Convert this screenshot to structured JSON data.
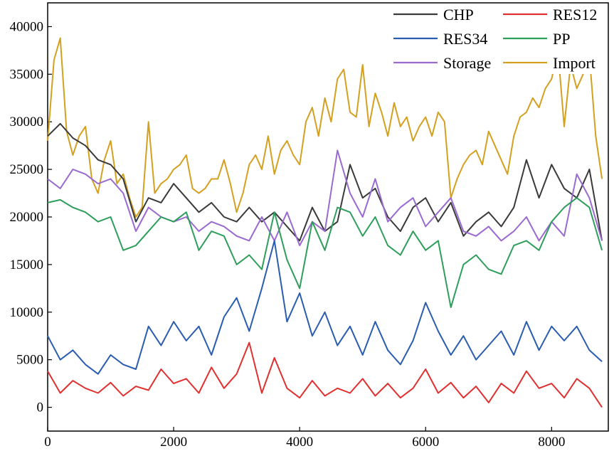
{
  "chart_data": {
    "type": "line",
    "title": "",
    "xlabel": "",
    "ylabel": "",
    "xlim": [
      0,
      8900
    ],
    "ylim": [
      -2500,
      42500
    ],
    "xticks": [
      0,
      2000,
      4000,
      6000,
      8000
    ],
    "yticks": [
      0,
      5000,
      10000,
      15000,
      20000,
      25000,
      30000,
      35000,
      40000
    ],
    "grid": false,
    "legend_position": "top-right",
    "legend": [
      "CHP",
      "RES12",
      "RES34",
      "PP",
      "Storage",
      "Import"
    ],
    "series": [
      {
        "name": "CHP",
        "color": "#3a3a3a",
        "x": [
          0,
          200,
          400,
          600,
          800,
          1000,
          1200,
          1400,
          1600,
          1800,
          2000,
          2200,
          2400,
          2600,
          2800,
          3000,
          3200,
          3400,
          3600,
          3800,
          4000,
          4200,
          4400,
          4600,
          4800,
          5000,
          5200,
          5400,
          5600,
          5800,
          6000,
          6200,
          6400,
          6600,
          6800,
          7000,
          7200,
          7400,
          7600,
          7800,
          8000,
          8200,
          8400,
          8600,
          8800
        ],
        "values": [
          28500,
          29800,
          28300,
          27500,
          26000,
          25500,
          24000,
          19500,
          22000,
          21500,
          23500,
          22000,
          20500,
          21500,
          20000,
          19500,
          21000,
          19500,
          20500,
          19000,
          17500,
          21000,
          18500,
          19500,
          25500,
          22000,
          23000,
          20000,
          18500,
          21000,
          22000,
          19500,
          21500,
          18000,
          19500,
          20500,
          19000,
          21000,
          26000,
          22000,
          25500,
          23000,
          22000,
          25000,
          17500
        ]
      },
      {
        "name": "RES12",
        "color": "#e03030",
        "x": [
          0,
          200,
          400,
          600,
          800,
          1000,
          1200,
          1400,
          1600,
          1800,
          2000,
          2200,
          2400,
          2600,
          2800,
          3000,
          3200,
          3400,
          3600,
          3800,
          4000,
          4200,
          4400,
          4600,
          4800,
          5000,
          5200,
          5400,
          5600,
          5800,
          6000,
          6200,
          6400,
          6600,
          6800,
          7000,
          7200,
          7400,
          7600,
          7800,
          8000,
          8200,
          8400,
          8600,
          8800
        ],
        "values": [
          3800,
          1500,
          2800,
          2000,
          1500,
          2600,
          1200,
          2200,
          1800,
          4000,
          2500,
          3000,
          1500,
          4200,
          2000,
          3500,
          6800,
          1500,
          5200,
          2000,
          1000,
          2800,
          1200,
          2000,
          1500,
          3000,
          1200,
          2500,
          1000,
          2000,
          4000,
          1500,
          2600,
          1000,
          2200,
          500,
          2500,
          1500,
          3800,
          2000,
          2500,
          1000,
          3000,
          2000,
          0
        ]
      },
      {
        "name": "RES34",
        "color": "#2a5db0",
        "x": [
          0,
          200,
          400,
          600,
          800,
          1000,
          1200,
          1400,
          1600,
          1800,
          2000,
          2200,
          2400,
          2600,
          2800,
          3000,
          3200,
          3400,
          3600,
          3800,
          4000,
          4200,
          4400,
          4600,
          4800,
          5000,
          5200,
          5400,
          5600,
          5800,
          6000,
          6200,
          6400,
          6600,
          6800,
          7000,
          7200,
          7400,
          7600,
          7800,
          8000,
          8200,
          8400,
          8600,
          8800
        ],
        "values": [
          7500,
          5000,
          6000,
          4500,
          3500,
          5500,
          4500,
          4000,
          8500,
          6500,
          9000,
          7000,
          8500,
          5500,
          9500,
          11500,
          8000,
          12500,
          17500,
          9000,
          12000,
          7500,
          10000,
          6500,
          8500,
          5500,
          9000,
          6000,
          4500,
          7000,
          11000,
          8000,
          5500,
          7500,
          5000,
          6500,
          8000,
          5500,
          9000,
          6000,
          8500,
          7000,
          8500,
          6000,
          4800
        ]
      },
      {
        "name": "PP",
        "color": "#2e9e5b",
        "x": [
          0,
          200,
          400,
          600,
          800,
          1000,
          1200,
          1400,
          1600,
          1800,
          2000,
          2200,
          2400,
          2600,
          2800,
          3000,
          3200,
          3400,
          3600,
          3800,
          4000,
          4200,
          4400,
          4600,
          4800,
          5000,
          5200,
          5400,
          5600,
          5800,
          6000,
          6200,
          6400,
          6600,
          6800,
          7000,
          7200,
          7400,
          7600,
          7800,
          8000,
          8200,
          8400,
          8600,
          8800
        ],
        "values": [
          21500,
          21800,
          21000,
          20500,
          19500,
          20000,
          16500,
          17000,
          18500,
          20000,
          19500,
          20500,
          16500,
          18500,
          18000,
          15000,
          16000,
          14500,
          20500,
          15500,
          12500,
          19500,
          16500,
          21000,
          20500,
          18000,
          20000,
          17000,
          16000,
          18500,
          16500,
          17500,
          10500,
          15000,
          16000,
          14500,
          14000,
          17000,
          17500,
          16500,
          19500,
          21000,
          22000,
          21000,
          16500
        ]
      },
      {
        "name": "Storage",
        "color": "#9a6ad0",
        "x": [
          0,
          200,
          400,
          600,
          800,
          1000,
          1200,
          1400,
          1600,
          1800,
          2000,
          2200,
          2400,
          2600,
          2800,
          3000,
          3200,
          3400,
          3600,
          3800,
          4000,
          4200,
          4400,
          4600,
          4800,
          5000,
          5200,
          5400,
          5600,
          5800,
          6000,
          6200,
          6400,
          6600,
          6800,
          7000,
          7200,
          7400,
          7600,
          7800,
          8000,
          8200,
          8400,
          8600,
          8800
        ],
        "values": [
          24000,
          23000,
          25000,
          24500,
          23500,
          24000,
          22500,
          18500,
          21000,
          20000,
          19500,
          20000,
          18500,
          19500,
          19000,
          18000,
          17500,
          20000,
          17500,
          20500,
          17000,
          19500,
          18500,
          27000,
          22500,
          20000,
          24000,
          19500,
          21000,
          22000,
          19000,
          20500,
          22000,
          18500,
          18000,
          19000,
          17500,
          18500,
          20000,
          17500,
          19500,
          18000,
          24500,
          22000,
          17500
        ]
      },
      {
        "name": "Import",
        "color": "#d4a020",
        "x": [
          0,
          100,
          200,
          300,
          400,
          500,
          600,
          700,
          800,
          900,
          1000,
          1100,
          1200,
          1300,
          1400,
          1500,
          1600,
          1700,
          1800,
          1900,
          2000,
          2100,
          2200,
          2300,
          2400,
          2500,
          2600,
          2700,
          2800,
          2900,
          3000,
          3100,
          3200,
          3300,
          3400,
          3500,
          3600,
          3700,
          3800,
          3900,
          4000,
          4100,
          4200,
          4300,
          4400,
          4500,
          4600,
          4700,
          4800,
          4900,
          5000,
          5100,
          5200,
          5300,
          5400,
          5500,
          5600,
          5700,
          5800,
          5900,
          6000,
          6100,
          6200,
          6300,
          6400,
          6500,
          6600,
          6700,
          6800,
          6900,
          7000,
          7100,
          7200,
          7300,
          7400,
          7500,
          7600,
          7700,
          7800,
          7900,
          8000,
          8100,
          8200,
          8300,
          8400,
          8500,
          8600,
          8700,
          8800
        ],
        "values": [
          28000,
          36500,
          38800,
          29000,
          26500,
          28500,
          29500,
          24000,
          22500,
          26000,
          28000,
          23500,
          24500,
          22000,
          20000,
          21000,
          30000,
          22500,
          23500,
          24000,
          25000,
          25500,
          26500,
          23000,
          22500,
          23000,
          24000,
          24000,
          26000,
          23500,
          20500,
          22500,
          25500,
          26500,
          25000,
          28500,
          24500,
          27000,
          28000,
          26500,
          25500,
          30000,
          31500,
          28500,
          32500,
          30000,
          34500,
          35500,
          31000,
          30500,
          36000,
          29500,
          33000,
          31000,
          28500,
          32000,
          29500,
          30500,
          28000,
          29500,
          30500,
          28500,
          31000,
          30000,
          22000,
          24000,
          25500,
          26500,
          27000,
          25500,
          29000,
          27500,
          26000,
          24500,
          28500,
          30500,
          31000,
          32500,
          31500,
          33500,
          34500,
          37500,
          29500,
          36000,
          33500,
          35000,
          37000,
          28500,
          24000
        ]
      }
    ]
  }
}
